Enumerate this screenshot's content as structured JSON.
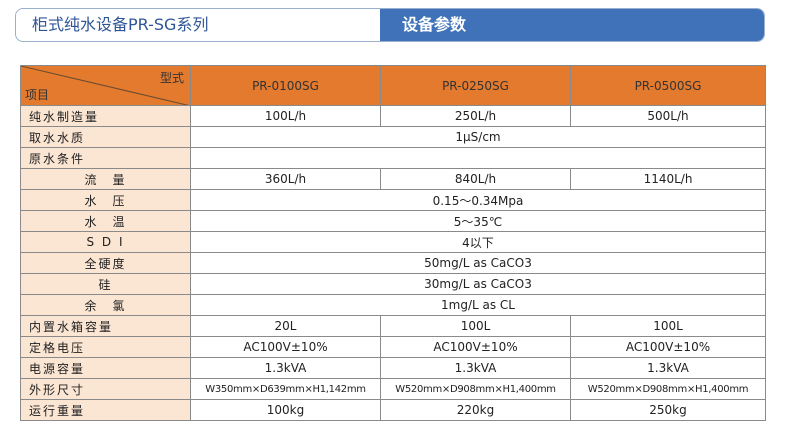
{
  "header": {
    "title": "柜式纯水设备PR-SG系列",
    "section": "设备参数"
  },
  "table": {
    "corner": {
      "model": "型式",
      "item": "项目"
    },
    "models": [
      "PR-0100SG",
      "PR-0250SG",
      "PR-0500SG"
    ],
    "rows": [
      {
        "label": "纯水制造量",
        "values": [
          "100L/h",
          "250L/h",
          "500L/h"
        ]
      },
      {
        "label": "取水水质",
        "values": [
          "1μS/cm"
        ]
      },
      {
        "label": "原水条件",
        "values": []
      },
      {
        "label": "流　量",
        "values": [
          "360L/h",
          "840L/h",
          "1140L/h"
        ]
      },
      {
        "label": "水　压",
        "values": [
          "0.15～0.34Mpa"
        ]
      },
      {
        "label": "水　温",
        "values": [
          "5～35℃"
        ]
      },
      {
        "label": "S D I",
        "values": [
          "4以下"
        ]
      },
      {
        "label": "全硬度",
        "values": [
          "50mg/L as CaCO3"
        ]
      },
      {
        "label": "硅",
        "values": [
          "30mg/L as CaCO3"
        ]
      },
      {
        "label": "余　氯",
        "values": [
          "1mg/L as CL"
        ]
      },
      {
        "label": "内置水箱容量",
        "values": [
          "20L",
          "100L",
          "100L"
        ]
      },
      {
        "label": "定格电压",
        "values": [
          "AC100V±10%",
          "AC100V±10%",
          "AC100V±10%"
        ]
      },
      {
        "label": "电源容量",
        "values": [
          "1.3kVA",
          "1.3kVA",
          "1.3kVA"
        ]
      },
      {
        "label": "外形尺寸",
        "values": [
          "W350mm×D639mm×H1,142mm",
          "W520mm×D908mm×H1,400mm",
          "W520mm×D908mm×H1,400mm"
        ]
      },
      {
        "label": "运行重量",
        "values": [
          "100kg",
          "220kg",
          "250kg"
        ]
      }
    ]
  }
}
